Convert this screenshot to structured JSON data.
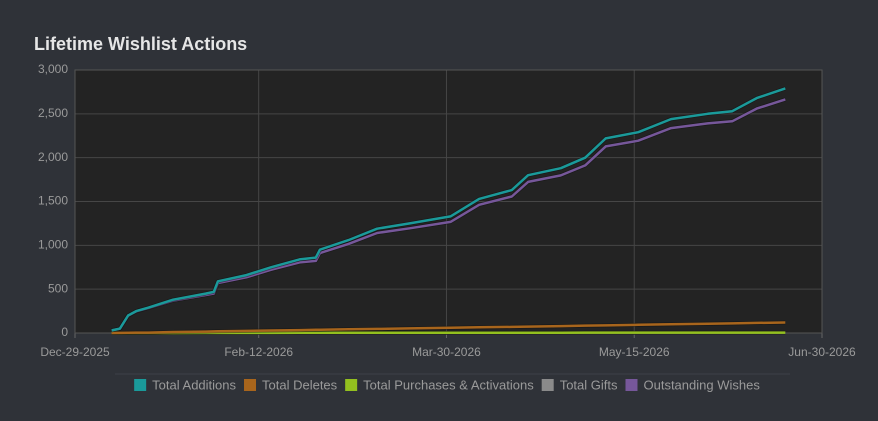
{
  "chart_data": {
    "type": "line",
    "title": "Lifetime Wishlist Actions",
    "x": [
      "2026-01-07",
      "2026-01-09",
      "2026-01-11",
      "2026-01-13",
      "2026-01-16",
      "2026-01-22",
      "2026-01-30",
      "2026-02-01",
      "2026-02-02",
      "2026-02-09",
      "2026-02-15",
      "2026-02-22",
      "2026-02-26",
      "2026-02-27",
      "2026-03-06",
      "2026-03-13",
      "2026-03-21",
      "2026-03-31",
      "2026-04-07",
      "2026-04-15",
      "2026-04-19",
      "2026-04-27",
      "2026-05-03",
      "2026-05-08",
      "2026-05-16",
      "2026-05-24",
      "2026-06-02",
      "2026-06-08",
      "2026-06-14",
      "2026-06-21"
    ],
    "series": [
      {
        "name": "Total Additions",
        "color": "#1a9a9a",
        "values": [
          30,
          50,
          200,
          250,
          290,
          380,
          450,
          470,
          590,
          660,
          750,
          840,
          860,
          950,
          1060,
          1190,
          1250,
          1330,
          1530,
          1630,
          1800,
          1880,
          2000,
          2220,
          2290,
          2440,
          2500,
          2530,
          2680,
          2790
        ]
      },
      {
        "name": "Total Deletes",
        "color": "#a8651c",
        "values": [
          0,
          1,
          3,
          4,
          5,
          11,
          16,
          18,
          19,
          24,
          28,
          33,
          36,
          37,
          42,
          47,
          53,
          60,
          65,
          70,
          73,
          79,
          84,
          87,
          93,
          99,
          105,
          110,
          115,
          120
        ]
      },
      {
        "name": "Total Purchases & Activations",
        "color": "#93c01f",
        "values": [
          0,
          0,
          0,
          0,
          0,
          0,
          1,
          1,
          1,
          1,
          1,
          2,
          2,
          2,
          2,
          2,
          3,
          3,
          3,
          3,
          3,
          3,
          4,
          4,
          4,
          4,
          4,
          5,
          5,
          5
        ]
      },
      {
        "name": "Total Gifts",
        "color": "#8a8a8a",
        "values": [
          0,
          0,
          0,
          0,
          0,
          0,
          0,
          0,
          0,
          0,
          0,
          0,
          0,
          0,
          0,
          0,
          0,
          0,
          0,
          0,
          0,
          0,
          0,
          0,
          0,
          0,
          0,
          0,
          0,
          0
        ]
      },
      {
        "name": "Outstanding Wishes",
        "color": "#76579a",
        "values": [
          30,
          49,
          197,
          246,
          285,
          369,
          433,
          451,
          570,
          635,
          721,
          805,
          822,
          911,
          1016,
          1141,
          1194,
          1267,
          1462,
          1557,
          1724,
          1798,
          1912,
          2129,
          2193,
          2337,
          2391,
          2415,
          2560,
          2665
        ]
      }
    ],
    "xlim": [
      "2025-12-29",
      "2026-06-30"
    ],
    "xticks": [
      {
        "value": "2025-12-29",
        "label": "Dec-29-2025"
      },
      {
        "value": "2026-02-12",
        "label": "Feb-12-2026"
      },
      {
        "value": "2026-03-30",
        "label": "Mar-30-2026"
      },
      {
        "value": "2026-05-15",
        "label": "May-15-2026"
      },
      {
        "value": "2026-06-30",
        "label": "Jun-30-2026"
      }
    ],
    "ylim": [
      0,
      3000
    ],
    "yticks": [
      0,
      500,
      {
        "value": 1000,
        "label": "1,000"
      },
      {
        "value": 1500,
        "label": "1,500"
      },
      {
        "value": 2000,
        "label": "2,000"
      },
      {
        "value": 2500,
        "label": "2,500"
      },
      {
        "value": 3000,
        "label": "3,000"
      }
    ],
    "grid": true,
    "legend": "bottom"
  }
}
